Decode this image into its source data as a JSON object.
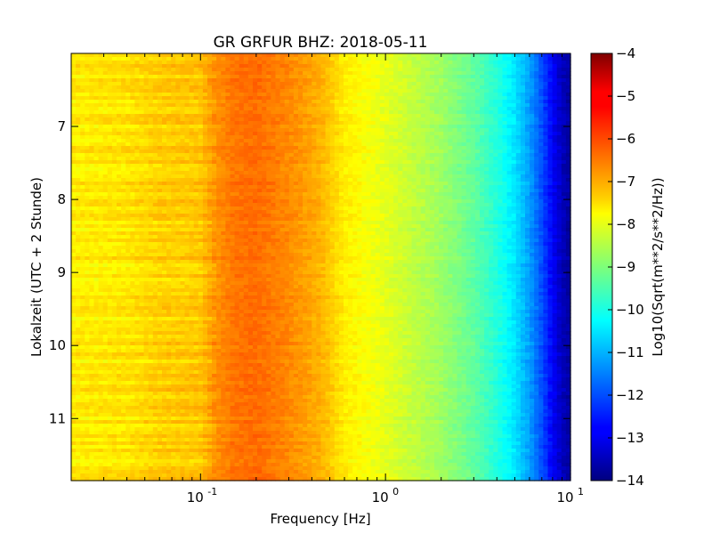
{
  "chart_data": {
    "type": "heatmap",
    "title": "GR GRFUR BHZ: 2018-05-11",
    "xlabel": "Frequency [Hz]",
    "ylabel": "Lokalzeit (UTC + 2 Stunde)",
    "x_scale": "log",
    "xlim": [
      0.02,
      10
    ],
    "ylim": [
      6.0,
      11.85
    ],
    "y_inverted": true,
    "x_ticks": [
      {
        "value": 0.1,
        "base": "10",
        "exp": "-1"
      },
      {
        "value": 1,
        "base": "10",
        "exp": "0"
      },
      {
        "value": 10,
        "base": "10",
        "exp": "1"
      }
    ],
    "y_ticks": [
      {
        "value": 7,
        "label": "7"
      },
      {
        "value": 8,
        "label": "8"
      },
      {
        "value": 9,
        "label": "9"
      },
      {
        "value": 10,
        "label": "10"
      },
      {
        "value": 11,
        "label": "11"
      }
    ],
    "colorbar": {
      "label": "Log10(Sqrt(m**2/s**2/Hz))",
      "range": [
        -14,
        -4
      ],
      "colormap": "jet",
      "ticks": [
        {
          "value": -4,
          "label": "−4"
        },
        {
          "value": -5,
          "label": "−5"
        },
        {
          "value": -6,
          "label": "−6"
        },
        {
          "value": -7,
          "label": "−7"
        },
        {
          "value": -8,
          "label": "−8"
        },
        {
          "value": -9,
          "label": "−9"
        },
        {
          "value": -10,
          "label": "−10"
        },
        {
          "value": -11,
          "label": "−11"
        },
        {
          "value": -12,
          "label": "−12"
        },
        {
          "value": -13,
          "label": "−13"
        },
        {
          "value": -14,
          "label": "−14"
        }
      ]
    },
    "spectrum_profile": [
      {
        "f": 0.02,
        "v": -7.6
      },
      {
        "f": 0.04,
        "v": -7.5
      },
      {
        "f": 0.06,
        "v": -7.3
      },
      {
        "f": 0.1,
        "v": -7.2
      },
      {
        "f": 0.12,
        "v": -6.7
      },
      {
        "f": 0.15,
        "v": -6.4
      },
      {
        "f": 0.2,
        "v": -6.3
      },
      {
        "f": 0.3,
        "v": -6.6
      },
      {
        "f": 0.45,
        "v": -7.0
      },
      {
        "f": 0.6,
        "v": -7.6
      },
      {
        "f": 1.0,
        "v": -8.0
      },
      {
        "f": 2.0,
        "v": -8.7
      },
      {
        "f": 3.0,
        "v": -9.3
      },
      {
        "f": 4.0,
        "v": -9.9
      },
      {
        "f": 5.0,
        "v": -10.5
      },
      {
        "f": 6.0,
        "v": -11.2
      },
      {
        "f": 7.0,
        "v": -12.0
      },
      {
        "f": 8.0,
        "v": -12.8
      },
      {
        "f": 9.0,
        "v": -13.4
      },
      {
        "f": 10.0,
        "v": -13.7
      }
    ]
  }
}
